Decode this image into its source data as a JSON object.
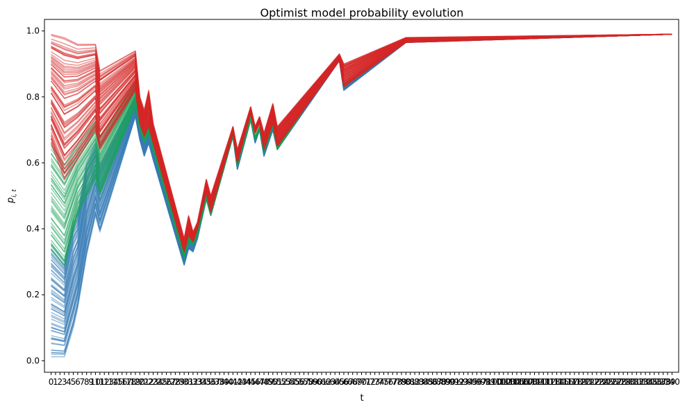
{
  "chart_data": {
    "type": "line",
    "title": "Optimist model probability evolution",
    "xlabel": "t",
    "ylabel": "p_{i,t}",
    "xlim": [
      -1.5,
      141.5
    ],
    "ylim": [
      -0.035,
      1.035
    ],
    "x_ticks": {
      "start": 0,
      "end": 140,
      "step": 1
    },
    "y_ticks": [
      0.0,
      0.2,
      0.4,
      0.6,
      0.8,
      1.0
    ],
    "y_tick_labels": [
      "0.0",
      "0.2",
      "0.4",
      "0.6",
      "0.8",
      "1.0"
    ],
    "grid": false,
    "legend": "none",
    "series": [
      {
        "color": "#3a7db8",
        "count": 60,
        "alpha": 0.5,
        "start_range": [
          0.012,
          0.35
        ],
        "points": [
          [
            0,
            0.012,
            0.35
          ],
          [
            3,
            0.012,
            0.3
          ],
          [
            5,
            0.1,
            0.43
          ],
          [
            6,
            0.16,
            0.45
          ],
          [
            8,
            0.32,
            0.6
          ],
          [
            10,
            0.44,
            0.66
          ],
          [
            11,
            0.39,
            0.6
          ],
          [
            19,
            0.74,
            0.8
          ],
          [
            20,
            0.67,
            0.7
          ],
          [
            21,
            0.62,
            0.66
          ],
          [
            22,
            0.66,
            0.69
          ],
          [
            23,
            0.61,
            0.64
          ],
          [
            30,
            0.29,
            0.31
          ],
          [
            31,
            0.34,
            0.36
          ],
          [
            32,
            0.33,
            0.36
          ],
          [
            33,
            0.37,
            0.39
          ],
          [
            35,
            0.49,
            0.5
          ],
          [
            36,
            0.44,
            0.46
          ],
          [
            41,
            0.68,
            0.69
          ],
          [
            42,
            0.58,
            0.6
          ],
          [
            45,
            0.73,
            0.74
          ],
          [
            46,
            0.66,
            0.68
          ],
          [
            47,
            0.7,
            0.71
          ],
          [
            48,
            0.62,
            0.64
          ],
          [
            50,
            0.7,
            0.71
          ],
          [
            51,
            0.64,
            0.66
          ],
          [
            65,
            0.91,
            0.92
          ],
          [
            66,
            0.82,
            0.83
          ],
          [
            80,
            0.965,
            0.97
          ],
          [
            140,
            0.99,
            0.99
          ]
        ]
      },
      {
        "color": "#1aa15a",
        "count": 40,
        "alpha": 0.5,
        "start_range": [
          0.33,
          0.66
        ],
        "points": [
          [
            0,
            0.33,
            0.66
          ],
          [
            3,
            0.28,
            0.6
          ],
          [
            6,
            0.44,
            0.66
          ],
          [
            10,
            0.55,
            0.73
          ],
          [
            11,
            0.5,
            0.68
          ],
          [
            19,
            0.77,
            0.85
          ],
          [
            20,
            0.7,
            0.75
          ],
          [
            21,
            0.66,
            0.69
          ],
          [
            22,
            0.69,
            0.72
          ],
          [
            23,
            0.64,
            0.67
          ],
          [
            30,
            0.31,
            0.33
          ],
          [
            31,
            0.36,
            0.38
          ],
          [
            32,
            0.35,
            0.37
          ],
          [
            33,
            0.38,
            0.4
          ],
          [
            35,
            0.49,
            0.51
          ],
          [
            36,
            0.44,
            0.46
          ],
          [
            41,
            0.68,
            0.69
          ],
          [
            42,
            0.59,
            0.6
          ],
          [
            45,
            0.73,
            0.74
          ],
          [
            46,
            0.67,
            0.68
          ],
          [
            47,
            0.7,
            0.71
          ],
          [
            48,
            0.63,
            0.64
          ],
          [
            50,
            0.71,
            0.72
          ],
          [
            51,
            0.64,
            0.66
          ],
          [
            65,
            0.92,
            0.93
          ],
          [
            66,
            0.83,
            0.84
          ],
          [
            80,
            0.967,
            0.97
          ],
          [
            140,
            0.99,
            0.99
          ]
        ]
      },
      {
        "color": "#d62728",
        "count": 70,
        "alpha": 0.5,
        "start_range": [
          0.66,
          0.99
        ],
        "points": [
          [
            0,
            0.66,
            0.99
          ],
          [
            3,
            0.55,
            0.98
          ],
          [
            6,
            0.61,
            0.96
          ],
          [
            10,
            0.7,
            0.96
          ],
          [
            11,
            0.64,
            0.88
          ],
          [
            19,
            0.82,
            0.94
          ],
          [
            20,
            0.72,
            0.8
          ],
          [
            21,
            0.68,
            0.76
          ],
          [
            22,
            0.71,
            0.82
          ],
          [
            23,
            0.66,
            0.72
          ],
          [
            30,
            0.33,
            0.37
          ],
          [
            31,
            0.38,
            0.44
          ],
          [
            32,
            0.36,
            0.39
          ],
          [
            33,
            0.4,
            0.42
          ],
          [
            35,
            0.51,
            0.55
          ],
          [
            36,
            0.45,
            0.5
          ],
          [
            41,
            0.69,
            0.71
          ],
          [
            42,
            0.6,
            0.64
          ],
          [
            45,
            0.75,
            0.77
          ],
          [
            46,
            0.69,
            0.71
          ],
          [
            47,
            0.72,
            0.74
          ],
          [
            48,
            0.64,
            0.69
          ],
          [
            50,
            0.72,
            0.78
          ],
          [
            51,
            0.65,
            0.71
          ],
          [
            65,
            0.91,
            0.93
          ],
          [
            66,
            0.83,
            0.9
          ],
          [
            80,
            0.965,
            0.98
          ],
          [
            140,
            0.99,
            0.99
          ]
        ]
      }
    ]
  }
}
